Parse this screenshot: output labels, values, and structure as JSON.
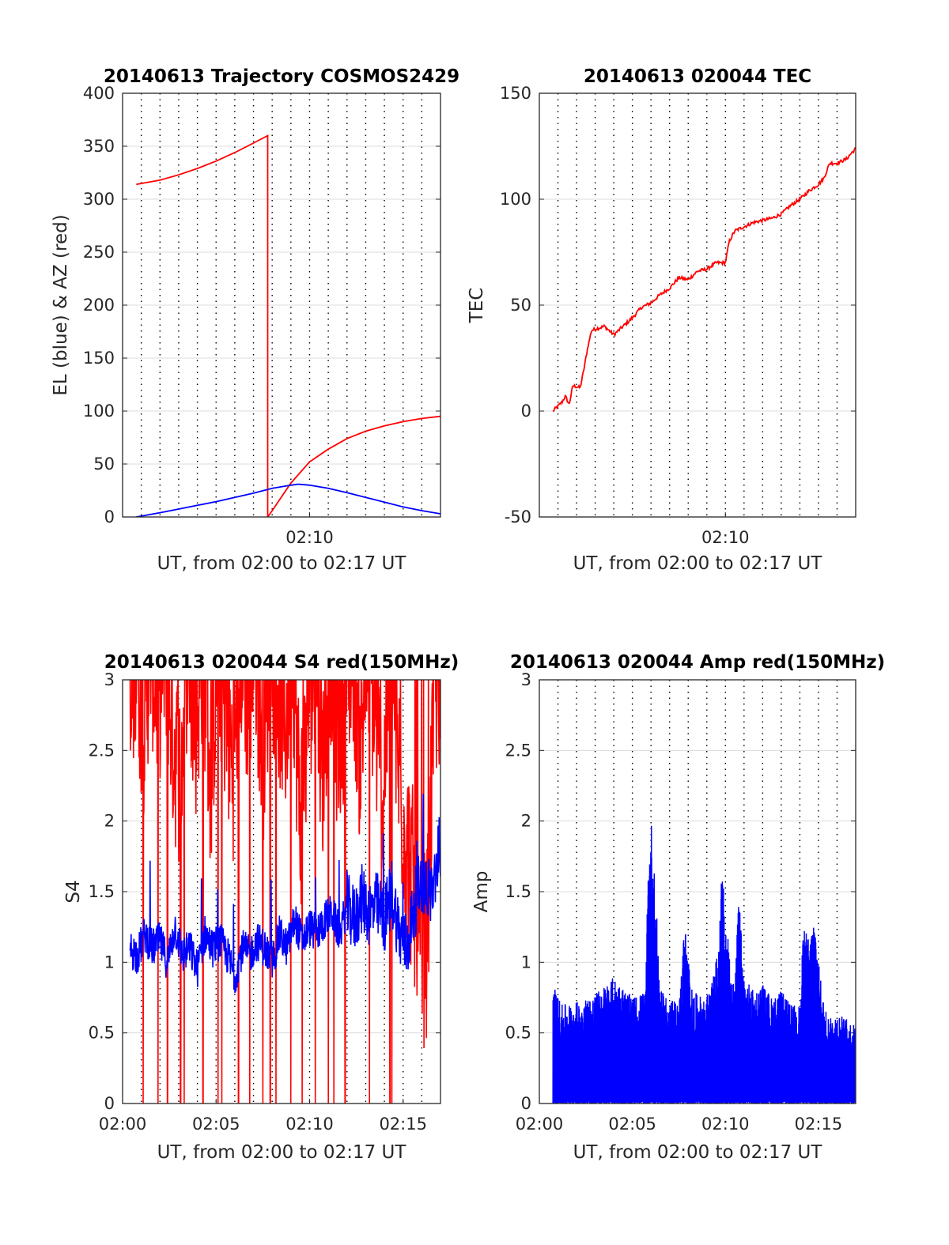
{
  "figure": {
    "panels": [
      {
        "id": "trajectory",
        "title": "20140613 Trajectory COSMOS2429",
        "xlabel": "UT, from 02:00 to 02:17 UT",
        "ylabel": "EL (blue) & AZ (red)",
        "xticks": [
          "02:10"
        ],
        "yticks": [
          "0",
          "50",
          "100",
          "150",
          "200",
          "250",
          "300",
          "350",
          "400"
        ]
      },
      {
        "id": "tec",
        "title": "20140613 020044 TEC",
        "xlabel": "UT, from 02:00 to 02:17 UT",
        "ylabel": "TEC",
        "xticks": [
          "02:10"
        ],
        "yticks": [
          "-50",
          "0",
          "50",
          "100",
          "150"
        ]
      },
      {
        "id": "s4",
        "title": "20140613 020044 S4 red(150MHz)",
        "xlabel": "UT, from 02:00 to 02:17 UT",
        "ylabel": "S4",
        "xticks": [
          "02:00",
          "02:05",
          "02:10",
          "02:15"
        ],
        "yticks": [
          "0",
          "0.5",
          "1",
          "1.5",
          "2",
          "2.5",
          "3"
        ]
      },
      {
        "id": "amp",
        "title": "20140613 020044 Amp red(150MHz)",
        "xlabel": "UT, from 02:00 to 02:17 UT",
        "ylabel": "Amp",
        "xticks": [
          "02:00",
          "02:05",
          "02:10",
          "02:15"
        ],
        "yticks": [
          "0",
          "0.5",
          "1",
          "1.5",
          "2",
          "2.5",
          "3"
        ]
      }
    ]
  },
  "chart_data": [
    {
      "type": "line",
      "title": "20140613 Trajectory COSMOS2429",
      "xlabel": "UT, from 02:00 to 02:17 UT",
      "ylabel": "EL (blue) & AZ (red)",
      "x_unit": "minutes after 02:00 UT",
      "xlim": [
        0,
        17
      ],
      "ylim": [
        0,
        400
      ],
      "grid": true,
      "x_grid_step_minutes": 1,
      "series": [
        {
          "color": "#ff0000",
          "x": [
            0.73,
            2,
            3,
            4,
            5,
            6,
            7,
            7.76,
            7.761,
            8,
            8.5,
            9,
            10,
            11,
            12,
            13,
            14,
            15,
            16,
            17
          ],
          "values": [
            314,
            318,
            323,
            329,
            336,
            344,
            353,
            360,
            0,
            6,
            19,
            32,
            52,
            64,
            74,
            81,
            86,
            90,
            93,
            95
          ]
        },
        {
          "color": "#0000ff",
          "x": [
            0.73,
            2,
            3,
            4,
            5,
            6,
            7,
            8,
            9,
            9.4,
            10,
            11,
            12,
            13,
            14,
            15,
            16,
            17
          ],
          "values": [
            0,
            4,
            7.5,
            11,
            14.5,
            18.5,
            22.5,
            27,
            30,
            31,
            30,
            27,
            23,
            18.5,
            14,
            9.5,
            6,
            3
          ]
        }
      ]
    },
    {
      "type": "line",
      "title": "20140613 020044 TEC",
      "xlabel": "UT, from 02:00 to 02:17 UT",
      "ylabel": "TEC",
      "x_unit": "minutes after 02:00 UT",
      "xlim": [
        0,
        17
      ],
      "ylim": [
        -50,
        150
      ],
      "grid": true,
      "x_grid_step_minutes": 1,
      "series": [
        {
          "color": "#ff0000",
          "x": [
            0.73,
            1.2,
            1.4,
            1.6,
            1.8,
            2.2,
            2.4,
            2.6,
            2.8,
            3.1,
            3.5,
            4,
            4.5,
            5,
            5.5,
            6,
            6.5,
            7,
            7.5,
            8,
            8.5,
            9,
            9.5,
            10,
            10.2,
            10.5,
            11,
            11.5,
            12,
            12.5,
            13,
            13.5,
            14,
            14.5,
            15,
            15.3,
            15.6,
            16,
            16.5,
            17
          ],
          "values": [
            0,
            4,
            7,
            3,
            12,
            11,
            20,
            30,
            38,
            39,
            40,
            36,
            40,
            44,
            49,
            51,
            55,
            58,
            63,
            62,
            66,
            67,
            70,
            70,
            80,
            85,
            87,
            89,
            90,
            91,
            93,
            97,
            100,
            104,
            107,
            110,
            117,
            117,
            119,
            124
          ]
        }
      ]
    },
    {
      "type": "line",
      "title": "20140613 020044 S4 red(150MHz)",
      "xlabel": "UT, from 02:00 to 02:17 UT",
      "ylabel": "S4",
      "x_unit": "minutes after 02:00 UT",
      "xlim": [
        0,
        17
      ],
      "ylim": [
        0,
        3
      ],
      "grid": true,
      "x_grid_step_minutes": 1,
      "series": [
        {
          "color": "#ff0000",
          "x": [
            0.4,
            0.7,
            1.1,
            1.5,
            1.9,
            2.3,
            2.7,
            3.1,
            3.5,
            3.9,
            4.3,
            4.7,
            5.1,
            5.5,
            5.9,
            6.3,
            6.7,
            7.1,
            7.5,
            7.9,
            8.3,
            8.7,
            9.1,
            9.5,
            9.9,
            10.3,
            10.7,
            11.1,
            11.5,
            11.9,
            12.3,
            12.7,
            13.1,
            13.5,
            13.9,
            14.3,
            14.7,
            15.1,
            15.5,
            15.9,
            16.3,
            16.7,
            17
          ],
          "values": [
            2.2,
            3,
            2.4,
            3,
            2.6,
            3,
            2.3,
            2.0,
            3,
            2.4,
            3,
            2.0,
            3,
            2.5,
            2.1,
            3,
            2.6,
            3,
            2.2,
            3,
            2.7,
            2.4,
            3,
            1.7,
            2.5,
            3,
            2.1,
            3,
            2.3,
            2.6,
            3,
            2.2,
            3,
            2.5,
            1.8,
            3,
            2.2,
            1.6,
            1.3,
            0.7,
            0.9,
            2.9,
            2.2
          ],
          "note_values": "dense noisy trace saturating at the top of the axis with frequent spikes down to 0"
        },
        {
          "color": "#0000ff",
          "x": [
            0.4,
            0.8,
            1.2,
            1.6,
            2,
            2.4,
            2.8,
            3.2,
            3.6,
            4,
            4.4,
            4.8,
            5.2,
            5.6,
            6,
            6.4,
            6.8,
            7.2,
            7.6,
            8,
            8.4,
            8.8,
            9.2,
            9.6,
            10,
            10.4,
            10.8,
            11.2,
            11.6,
            12,
            12.4,
            12.8,
            13.2,
            13.6,
            14,
            14.4,
            14.8,
            15.2,
            15.6,
            16,
            16.4,
            16.8,
            17
          ],
          "values": [
            1.1,
            1.05,
            1.2,
            1.1,
            1.15,
            1.0,
            1.25,
            1.05,
            1.1,
            0.95,
            1.2,
            1.1,
            1.15,
            1.05,
            0.9,
            1.1,
            1.05,
            1.15,
            1.1,
            1.0,
            1.2,
            1.1,
            1.3,
            1.15,
            1.25,
            1.2,
            1.3,
            1.35,
            1.2,
            1.4,
            1.3,
            1.45,
            1.35,
            1.4,
            1.3,
            1.5,
            1.2,
            1.1,
            1.4,
            1.6,
            1.5,
            1.55,
            1.7
          ],
          "note_values": "noisy trace near 1.1 rising toward about 1.5 after 02:12"
        }
      ]
    },
    {
      "type": "line",
      "title": "20140613 020044 Amp red(150MHz)",
      "xlabel": "UT, from 02:00 to 02:17 UT",
      "ylabel": "Amp",
      "x_unit": "minutes after 02:00 UT",
      "xlim": [
        0,
        17
      ],
      "ylim": [
        0,
        3
      ],
      "grid": true,
      "x_grid_step_minutes": 1,
      "series": [
        {
          "color": "#0000ff",
          "envelope_x": [
            0.73,
            1.2,
            2,
            3,
            4,
            5,
            5.7,
            5.85,
            6,
            6.2,
            6.5,
            7,
            7.5,
            7.8,
            8.2,
            8.8,
            9.2,
            9.6,
            9.8,
            10.1,
            10.5,
            10.7,
            11,
            11.5,
            12,
            12.5,
            13,
            13.5,
            14,
            14.2,
            14.5,
            14.8,
            15,
            15.3,
            15.6,
            16,
            16.5,
            17
          ],
          "envelope_upper": [
            0.85,
            0.7,
            0.72,
            0.78,
            0.9,
            0.75,
            0.8,
            1.75,
            2.05,
            1.6,
            0.8,
            0.75,
            0.7,
            1.3,
            0.8,
            0.75,
            0.8,
            1.1,
            1.67,
            1.2,
            0.8,
            1.5,
            0.9,
            0.8,
            0.85,
            0.75,
            0.8,
            0.7,
            0.7,
            1.3,
            1.15,
            1.4,
            1.0,
            0.7,
            0.6,
            0.65,
            0.6,
            0.55
          ],
          "baseline": 0,
          "note_values": "dense amplitude trace filling from 0 up to the envelope; peaks near 2.05 at about 02:06, 1.67 at about 02:10, 1.4 at about 02:15"
        }
      ]
    }
  ]
}
